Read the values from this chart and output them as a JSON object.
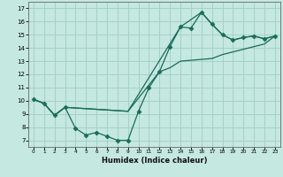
{
  "xlabel": "Humidex (Indice chaleur)",
  "bg_color": "#c5e8e0",
  "line_color": "#1a6b5a",
  "grid_color": "#9ecec5",
  "xlim": [
    -0.5,
    23.5
  ],
  "ylim": [
    6.5,
    17.5
  ],
  "xticks": [
    0,
    1,
    2,
    3,
    4,
    5,
    6,
    7,
    8,
    9,
    10,
    11,
    12,
    13,
    14,
    15,
    16,
    17,
    18,
    19,
    20,
    21,
    22,
    23
  ],
  "yticks": [
    7,
    8,
    9,
    10,
    11,
    12,
    13,
    14,
    15,
    16,
    17
  ],
  "line1_x": [
    0,
    1,
    2,
    3,
    4,
    5,
    6,
    7,
    8,
    9,
    10,
    11,
    12,
    13,
    14,
    15,
    16,
    17,
    18,
    19,
    20,
    21,
    22,
    23
  ],
  "line1_y": [
    10.1,
    9.8,
    8.9,
    9.5,
    7.9,
    7.4,
    7.6,
    7.3,
    7.0,
    7.0,
    9.2,
    11.0,
    12.2,
    14.1,
    15.6,
    15.5,
    16.7,
    15.8,
    15.0,
    14.6,
    14.8,
    14.9,
    14.7,
    14.9
  ],
  "line2_x": [
    0,
    1,
    2,
    3,
    9,
    14,
    16,
    17,
    18,
    19,
    20,
    21,
    22,
    23
  ],
  "line2_y": [
    10.1,
    9.8,
    8.9,
    9.5,
    9.2,
    15.6,
    16.7,
    15.8,
    15.0,
    14.6,
    14.8,
    14.9,
    14.7,
    14.9
  ],
  "line3_x": [
    0,
    1,
    2,
    3,
    9,
    12,
    13,
    14,
    17,
    18,
    19,
    20,
    21,
    22,
    23
  ],
  "line3_y": [
    10.1,
    9.8,
    8.9,
    9.5,
    9.2,
    12.2,
    12.5,
    13.0,
    13.2,
    13.5,
    13.7,
    13.9,
    14.1,
    14.3,
    14.9
  ]
}
